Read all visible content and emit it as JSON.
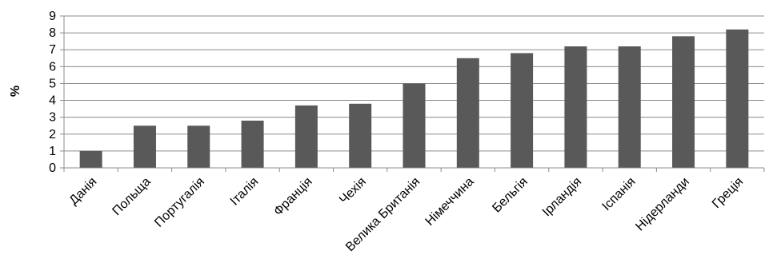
{
  "chart_data": {
    "type": "bar",
    "title": "",
    "xlabel": "",
    "ylabel": "%",
    "ylim": [
      0,
      9
    ],
    "yticks": [
      0,
      1,
      2,
      3,
      4,
      5,
      6,
      7,
      8,
      9
    ],
    "grid": true,
    "legend": "none",
    "bar_color": "#595959",
    "grid_color": "#8c8c8c",
    "axis_color": "#8c8c8c",
    "categories": [
      "Данія",
      "Польща",
      "Португалія",
      "Італія",
      "Франція",
      "Чехія",
      "Велика Британія",
      "Німеччина",
      "Бельгія",
      "Ірландія",
      "Іспанія",
      "Нідерланди",
      "Греція"
    ],
    "values": [
      1.0,
      2.5,
      2.5,
      2.8,
      3.7,
      3.8,
      5.0,
      6.5,
      6.8,
      7.2,
      7.2,
      7.8,
      8.2
    ]
  }
}
